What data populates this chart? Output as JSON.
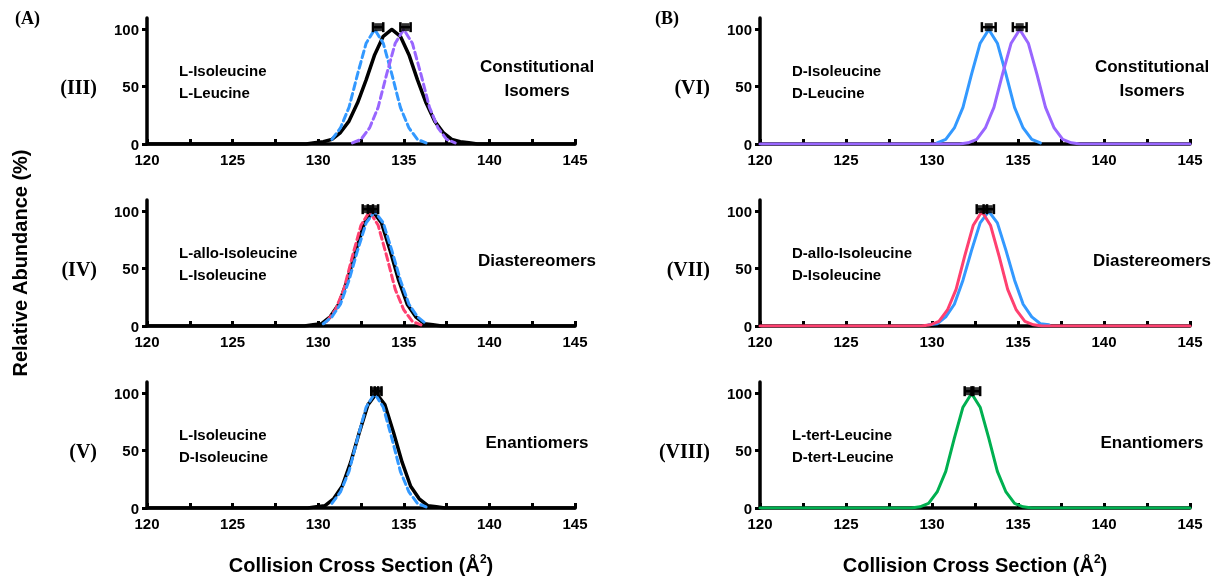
{
  "chart_data": [
    {
      "type": "line",
      "annotations": [
        "(III)",
        "L-Isoleucine\nL-Leucine",
        "Constitutional\nIsomers",
        "(A)"
      ],
      "xlim": [
        120,
        145
      ],
      "xticks": [
        120,
        {
          "value": 122.5,
          "label": null
        },
        125,
        {
          "value": 127.5,
          "label": null
        },
        130,
        {
          "value": 132.5,
          "label": null
        },
        135,
        {
          "value": 137.5,
          "label": null
        },
        140,
        {
          "value": 142.5,
          "label": null
        },
        145
      ],
      "ylim": [
        0,
        110
      ],
      "yticks": [
        0,
        50,
        100
      ],
      "series": [
        {
          "color": "#3399ff",
          "line_style": "dashed",
          "x": [
            130.8,
            131.3,
            131.8,
            132.3,
            132.8,
            133.3,
            133.8,
            134.3,
            134.8,
            135.3,
            135.8,
            136.3
          ],
          "values": [
            4,
            14,
            32,
            61,
            88,
            100,
            88,
            61,
            32,
            14,
            4,
            1
          ]
        },
        {
          "color": "#9966ff",
          "line_style": "dashed",
          "x": [
            132,
            132.5,
            133,
            133.5,
            134,
            134.5,
            135,
            135.5,
            136,
            136.5,
            137,
            137.5,
            138
          ],
          "values": [
            1,
            4,
            14,
            32,
            61,
            88,
            100,
            88,
            61,
            32,
            14,
            4,
            1
          ]
        },
        {
          "color": "#000000",
          "line_style": "solid",
          "x": [
            120,
            129.3,
            129.8,
            130.3,
            130.8,
            131.3,
            131.8,
            132.3,
            132.8,
            133.3,
            133.8,
            134.3,
            134.8,
            135.3,
            135.8,
            136.3,
            136.8,
            137.3,
            137.8,
            138.3,
            138.8,
            139.3,
            145
          ],
          "values": [
            0,
            0,
            1,
            2,
            4,
            10,
            20,
            36,
            56,
            78,
            94,
            100,
            94,
            78,
            56,
            36,
            20,
            10,
            4,
            2,
            1,
            0,
            0
          ]
        },
        {
          "type": "scatter",
          "color": "#000000",
          "marker": "square",
          "x": [
            133.5,
            135.1
          ],
          "values": [
            102,
            102
          ],
          "xerrors": [
            0.3,
            0.3
          ]
        }
      ]
    },
    {
      "type": "line",
      "ylabel": "Relative Abundance (%)",
      "annotations": [
        "(IV)",
        "L-allo-Isoleucine\nL-Isoleucine",
        "Diastereomers"
      ],
      "xlim": [
        120,
        145
      ],
      "xticks": [
        120,
        {
          "value": 122.5,
          "label": null
        },
        125,
        {
          "value": 127.5,
          "label": null
        },
        130,
        {
          "value": 132.5,
          "label": null
        },
        135,
        {
          "value": 137.5,
          "label": null
        },
        140,
        {
          "value": 142.5,
          "label": null
        },
        145
      ],
      "ylim": [
        0,
        110
      ],
      "yticks": [
        0,
        50,
        100
      ],
      "series": [
        {
          "color": "#ff4070",
          "line_style": "dashed",
          "x": [
            130.5,
            131,
            131.5,
            132,
            132.5,
            133,
            133.5,
            134,
            134.5,
            135,
            135.5,
            136
          ],
          "values": [
            4,
            14,
            32,
            61,
            88,
            100,
            88,
            61,
            32,
            14,
            4,
            1
          ]
        },
        {
          "color": "#3399ff",
          "line_style": "dashed",
          "x": [
            130.3,
            130.8,
            131.3,
            131.8,
            132.3,
            132.8,
            133.3,
            133.8,
            134.3,
            134.8,
            135.3,
            135.8,
            136.3
          ],
          "values": [
            2,
            8,
            19,
            40,
            66,
            90,
            100,
            90,
            66,
            40,
            19,
            8,
            2
          ]
        },
        {
          "color": "#000000",
          "line_style": "solid",
          "x": [
            120,
            128.2,
            128.7,
            129.2,
            129.7,
            130.2,
            130.7,
            131.2,
            131.7,
            132.2,
            132.7,
            133.2,
            133.7,
            134.2,
            134.7,
            135.2,
            135.7,
            136.2,
            136.7,
            137.2,
            137.7,
            138.2,
            145
          ],
          "values": [
            0,
            0,
            0,
            0,
            1,
            2,
            8,
            19,
            40,
            66,
            90,
            100,
            90,
            66,
            40,
            19,
            8,
            2,
            1,
            0,
            0,
            0,
            0
          ]
        },
        {
          "type": "scatter",
          "color": "#000000",
          "marker": "square",
          "x": [
            132.9,
            133.2
          ],
          "values": [
            102,
            102
          ],
          "xerrors": [
            0.3,
            0.3
          ]
        }
      ]
    },
    {
      "type": "line",
      "xlabel": "Collision Cross Section (Å$^{2}$)",
      "annotations": [
        "(V)",
        "L-Isoleucine\nD-Isoleucine",
        "Enantiomers"
      ],
      "xlim": [
        120,
        145
      ],
      "xticks": [
        120,
        {
          "value": 122.5,
          "label": null
        },
        125,
        {
          "value": 127.5,
          "label": null
        },
        130,
        {
          "value": 132.5,
          "label": null
        },
        135,
        {
          "value": 137.5,
          "label": null
        },
        140,
        {
          "value": 142.5,
          "label": null
        },
        145
      ],
      "ylim": [
        0,
        110
      ],
      "yticks": [
        0,
        50,
        100
      ],
      "series": [
        {
          "color": "#3399ff",
          "line_style": "dashed",
          "x": [
            130.8,
            131.3,
            131.8,
            132.3,
            132.8,
            133.3,
            133.8,
            134.3,
            134.8,
            135.3,
            135.8,
            136.3
          ],
          "values": [
            4,
            14,
            32,
            61,
            88,
            100,
            88,
            61,
            32,
            14,
            4,
            1
          ]
        },
        {
          "color": "#000000",
          "line_style": "solid",
          "x": [
            120,
            128.4,
            128.9,
            129.4,
            129.9,
            130.4,
            130.9,
            131.4,
            131.9,
            132.4,
            132.9,
            133.4,
            133.9,
            134.4,
            134.9,
            135.4,
            135.9,
            136.4,
            136.9,
            137.4,
            137.9,
            138.4,
            145
          ],
          "values": [
            0,
            0,
            0,
            0,
            1,
            2,
            8,
            19,
            40,
            66,
            90,
            100,
            90,
            66,
            40,
            19,
            8,
            2,
            1,
            0,
            0,
            0,
            0
          ]
        },
        {
          "type": "scatter",
          "color": "#000000",
          "marker": "square",
          "x": [
            133.3,
            133.5
          ],
          "values": [
            102,
            102
          ],
          "xerrors": [
            0.2,
            0.2
          ]
        }
      ]
    },
    {
      "type": "line",
      "annotations": [
        "(VI)",
        "D-Isoleucine\nD-Leucine",
        "Constitutional\nIsomers",
        "(B)"
      ],
      "xlim": [
        120,
        145
      ],
      "xticks": [
        120,
        {
          "value": 122.5,
          "label": null
        },
        125,
        {
          "value": 127.5,
          "label": null
        },
        130,
        {
          "value": 132.5,
          "label": null
        },
        135,
        {
          "value": 137.5,
          "label": null
        },
        140,
        {
          "value": 142.5,
          "label": null
        },
        145
      ],
      "ylim": [
        0,
        110
      ],
      "yticks": [
        0,
        50,
        100
      ],
      "series": [
        {
          "color": "#3399ff",
          "line_style": "solid",
          "x": [
            130.3,
            130.8,
            131.3,
            131.8,
            132.3,
            132.8,
            133.3,
            133.8,
            134.3,
            134.8,
            135.3,
            135.8,
            136.3
          ],
          "values": [
            1,
            4,
            14,
            32,
            61,
            88,
            100,
            88,
            61,
            32,
            14,
            4,
            1
          ]
        },
        {
          "color": "#9966ff",
          "line_style": "solid",
          "x": [
            120,
            130.1,
            130.6,
            131.1,
            131.6,
            132.1,
            132.6,
            133.1,
            133.6,
            134.1,
            134.6,
            135.1,
            135.6,
            136.1,
            136.6,
            137.1,
            137.6,
            138.1,
            138.6,
            139.1,
            139.6,
            140.1,
            145
          ],
          "values": [
            0,
            0,
            0,
            0,
            0,
            1,
            4,
            14,
            32,
            61,
            88,
            100,
            88,
            61,
            32,
            14,
            4,
            1,
            0,
            0,
            0,
            0,
            0
          ]
        },
        {
          "type": "scatter",
          "color": "#000000",
          "marker": "square",
          "x": [
            133.3,
            135.1
          ],
          "values": [
            102,
            102
          ],
          "xerrors": [
            0.4,
            0.4
          ]
        }
      ]
    },
    {
      "type": "line",
      "annotations": [
        "(VII)",
        "D-allo-Isoleucine\nD-Isoleucine",
        "Diastereomers"
      ],
      "xlim": [
        120,
        145
      ],
      "xticks": [
        120,
        {
          "value": 122.5,
          "label": null
        },
        125,
        {
          "value": 127.5,
          "label": null
        },
        130,
        {
          "value": 132.5,
          "label": null
        },
        135,
        {
          "value": 137.5,
          "label": null
        },
        140,
        {
          "value": 142.5,
          "label": null
        },
        145
      ],
      "ylim": [
        0,
        110
      ],
      "yticks": [
        0,
        50,
        100
      ],
      "series": [
        {
          "color": "#3399ff",
          "line_style": "solid",
          "x": [
            129.8,
            130.3,
            130.8,
            131.3,
            131.8,
            132.3,
            132.8,
            133.3,
            133.8,
            134.3,
            134.8,
            135.3,
            135.8,
            136.3,
            136.8
          ],
          "values": [
            1,
            2,
            8,
            19,
            40,
            66,
            90,
            100,
            90,
            66,
            40,
            19,
            8,
            2,
            1
          ]
        },
        {
          "color": "#ff4070",
          "line_style": "solid",
          "x": [
            120,
            127.9,
            128.4,
            128.9,
            129.4,
            129.9,
            130.4,
            130.9,
            131.4,
            131.9,
            132.4,
            132.9,
            133.4,
            133.9,
            134.4,
            134.9,
            135.4,
            135.9,
            136.4,
            136.9,
            137.4,
            137.9,
            145
          ],
          "values": [
            0,
            0,
            0,
            0,
            0,
            1,
            4,
            14,
            32,
            61,
            88,
            100,
            88,
            61,
            32,
            14,
            4,
            1,
            0,
            0,
            0,
            0,
            0
          ]
        },
        {
          "type": "scatter",
          "color": "#000000",
          "marker": "square",
          "x": [
            132.9,
            133.3
          ],
          "values": [
            102,
            102
          ],
          "xerrors": [
            0.3,
            0.3
          ]
        }
      ]
    },
    {
      "type": "line",
      "xlabel": "Collision Cross Section (Å$^{2}$)",
      "annotations": [
        "(VIII)",
        "L-tert-Leucine\nD-tert-Leucine",
        "Enantiomers"
      ],
      "xlim": [
        120,
        145
      ],
      "xticks": [
        120,
        {
          "value": 122.5,
          "label": null
        },
        125,
        {
          "value": 127.5,
          "label": null
        },
        130,
        {
          "value": 132.5,
          "label": null
        },
        135,
        {
          "value": 137.5,
          "label": null
        },
        140,
        {
          "value": 142.5,
          "label": null
        },
        145
      ],
      "ylim": [
        0,
        110
      ],
      "yticks": [
        0,
        50,
        100
      ],
      "series": [
        {
          "color": "#00b050",
          "line_style": "solid",
          "x": [
            120,
            127.3,
            127.8,
            128.3,
            128.8,
            129.3,
            129.8,
            130.3,
            130.8,
            131.3,
            131.8,
            132.3,
            132.8,
            133.3,
            133.8,
            134.3,
            134.8,
            135.3,
            135.8,
            136.3,
            136.8,
            137.3,
            145
          ],
          "values": [
            0,
            0,
            0,
            0,
            0,
            1,
            4,
            14,
            32,
            61,
            88,
            100,
            88,
            61,
            32,
            14,
            4,
            1,
            0,
            0,
            0,
            0,
            0
          ]
        },
        {
          "type": "scatter",
          "color": "#000000",
          "marker": "square",
          "x": [
            132.1,
            132.6
          ],
          "values": [
            102,
            102
          ],
          "xerrors": [
            0.2,
            0.2
          ]
        }
      ]
    }
  ]
}
